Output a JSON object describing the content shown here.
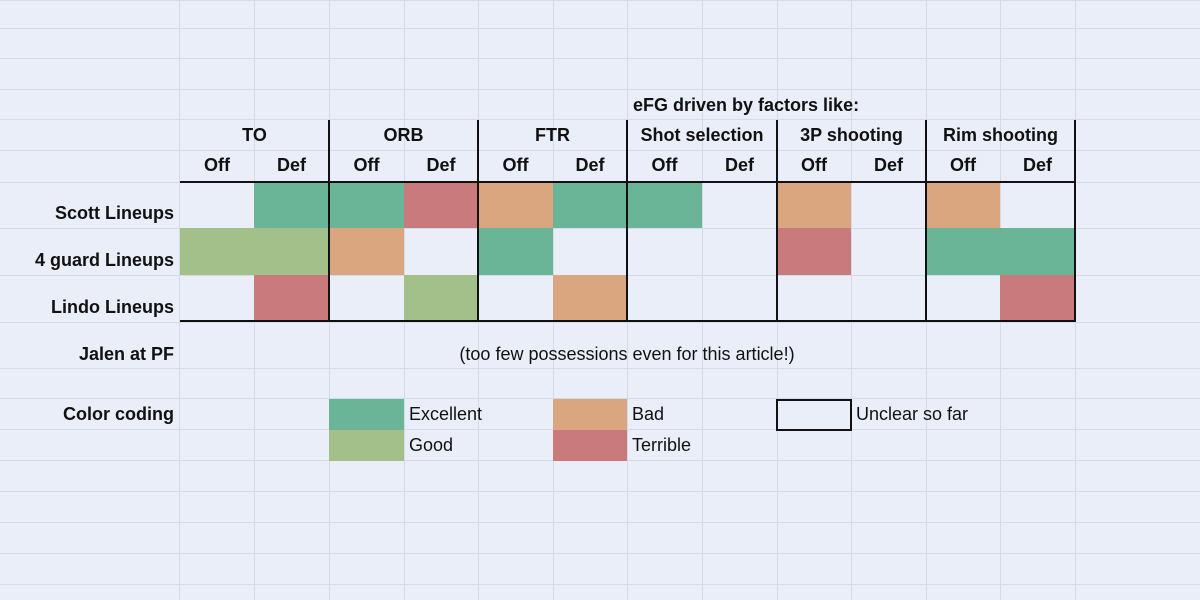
{
  "colors": {
    "excellent": "#6ab497",
    "good": "#a4c08a",
    "bad": "#d9a67f",
    "terrible": "#c97a7d",
    "unclear": "#e9eef9",
    "background": "#e9eef9",
    "gridline": "#d4dae7"
  },
  "efg_note": "eFG driven by factors like:",
  "factors": [
    {
      "name": "TO",
      "off": "Off",
      "def": "Def"
    },
    {
      "name": "ORB",
      "off": "Off",
      "def": "Def"
    },
    {
      "name": "FTR",
      "off": "Off",
      "def": "Def"
    },
    {
      "name": "Shot selection",
      "off": "Off",
      "def": "Def"
    },
    {
      "name": "3P shooting",
      "off": "Off",
      "def": "Def"
    },
    {
      "name": "Rim shooting",
      "off": "Off",
      "def": "Def"
    }
  ],
  "rows": [
    {
      "label": "Scott Lineups",
      "cells": [
        "unclear",
        "excellent",
        "excellent",
        "terrible",
        "bad",
        "excellent",
        "excellent",
        "unclear",
        "bad",
        "unclear",
        "bad",
        "unclear"
      ]
    },
    {
      "label": "4 guard Lineups",
      "cells": [
        "good",
        "good",
        "bad",
        "unclear",
        "excellent",
        "unclear",
        "unclear",
        "unclear",
        "terrible",
        "unclear",
        "excellent",
        "excellent"
      ]
    },
    {
      "label": "Lindo Lineups",
      "cells": [
        "unclear",
        "terrible",
        "unclear",
        "good",
        "unclear",
        "bad",
        "unclear",
        "unclear",
        "unclear",
        "unclear",
        "unclear",
        "terrible"
      ]
    }
  ],
  "jalen": {
    "label": "Jalen at PF",
    "note": "(too few possessions even for this article!)"
  },
  "legend": {
    "label": "Color coding",
    "items": [
      {
        "key": "excellent",
        "text": "Excellent"
      },
      {
        "key": "good",
        "text": "Good"
      },
      {
        "key": "bad",
        "text": "Bad"
      },
      {
        "key": "terrible",
        "text": "Terrible"
      },
      {
        "key": "unclear",
        "text": "Unclear so far"
      }
    ]
  }
}
